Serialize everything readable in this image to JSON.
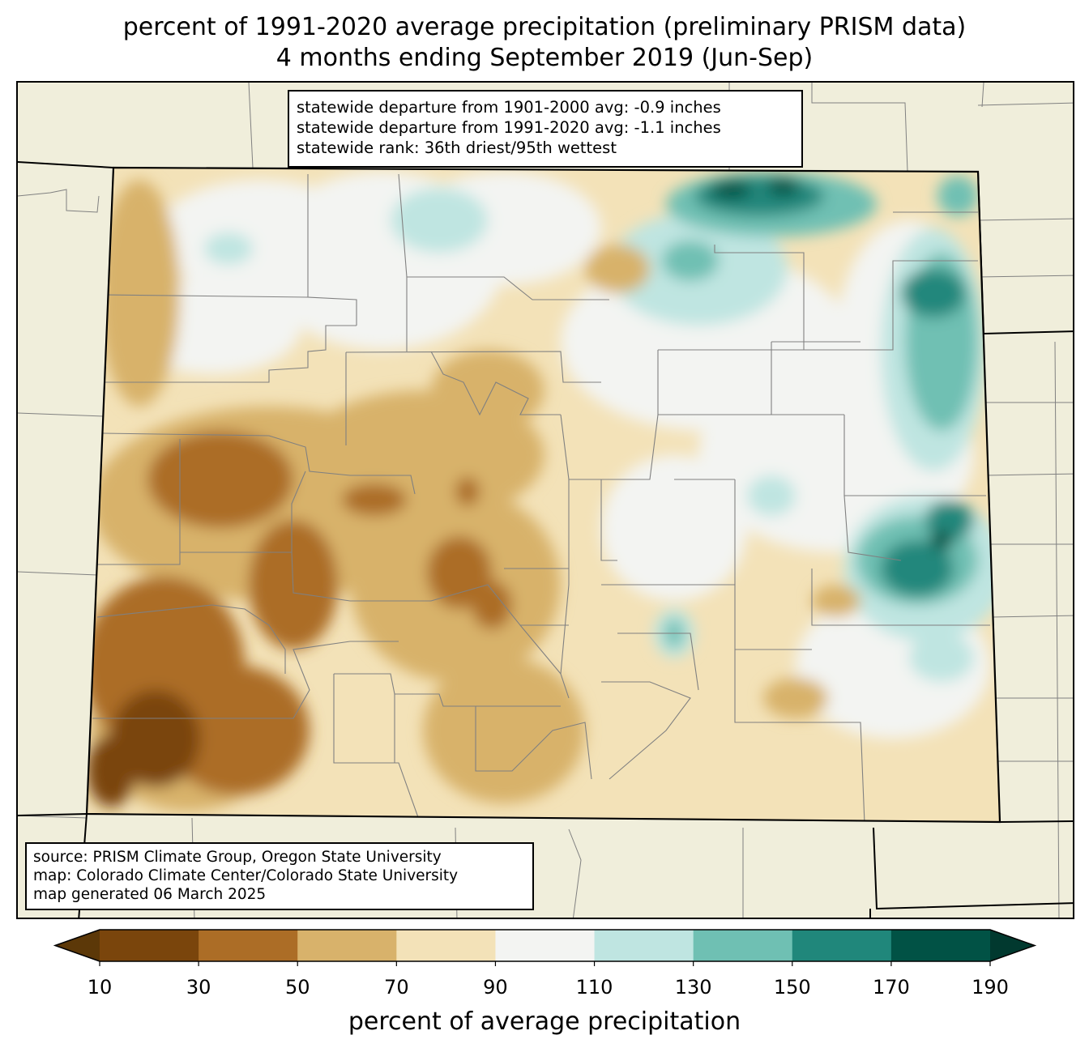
{
  "title": {
    "line1": "percent of 1991-2020 average precipitation (preliminary PRISM data)",
    "line2": "4 months ending September 2019 (Jun-Sep)"
  },
  "stats": {
    "departure_1901_2000": "statewide departure from 1901-2000 avg: -0.9 inches",
    "departure_1991_2020": "statewide departure from 1991-2020 avg: -1.1 inches",
    "rank": "statewide rank: 36th driest/95th wettest"
  },
  "source": {
    "line1": "source: PRISM Climate Group, Oregon State University",
    "line2": "map: Colorado Climate Center/Colorado State University",
    "line3": "map generated 06 March 2025"
  },
  "legend": {
    "label": "percent of average precipitation",
    "ticks": [
      "10",
      "30",
      "50",
      "70",
      "90",
      "110",
      "130",
      "150",
      "170",
      "190"
    ],
    "colors": [
      "#5c3808",
      "#7a450c",
      "#ac6d26",
      "#d8b26b",
      "#f3e2b8",
      "#f3f4f2",
      "#bfe5e1",
      "#6fc0b3",
      "#20877b",
      "#015245",
      "#01392f"
    ],
    "extend": "both"
  },
  "map_colors": {
    "land_background": "#f0eedb",
    "county_lines": "#808080",
    "state_lines": "#000000"
  }
}
